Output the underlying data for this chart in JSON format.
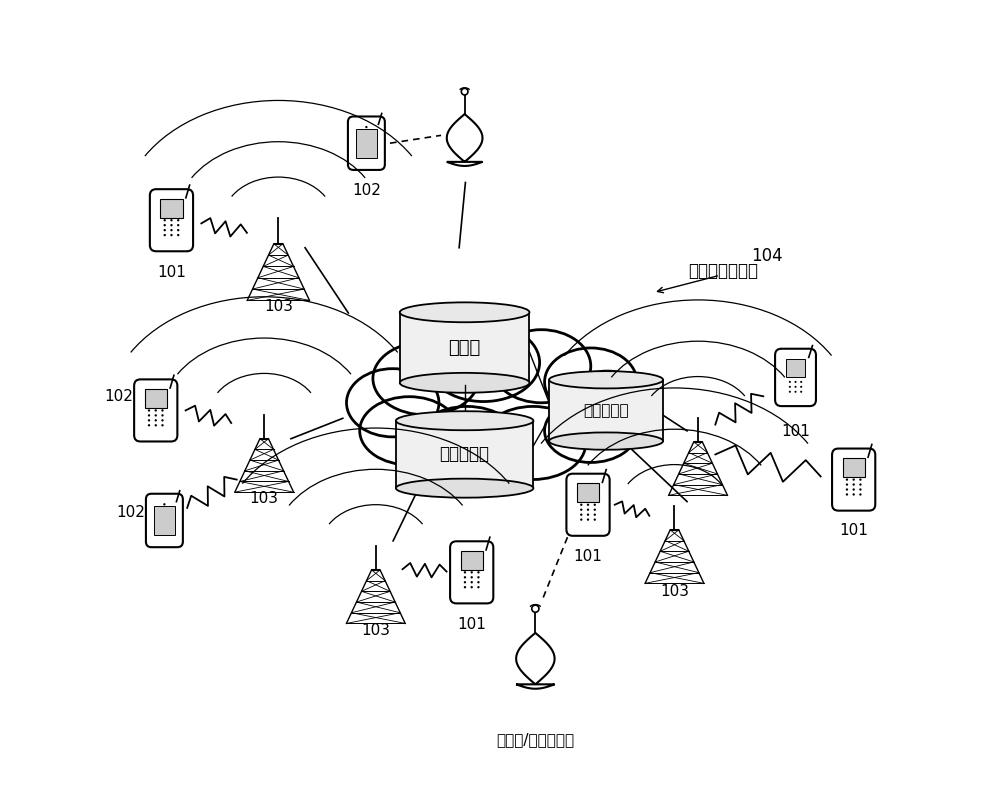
{
  "background_color": "#ffffff",
  "cloud_text_server": "集中式云服务器",
  "cloud_text_db": "数据库",
  "cloud_text_ctrl": "控制管理器",
  "cloud_text_compute": "计算服务器",
  "fake_bs_label": "伪基站/非法接入点",
  "label_101": "101",
  "label_102": "102",
  "label_103": "103",
  "label_104": "104",
  "figsize": [
    10.0,
    8.02
  ],
  "dpi": 100
}
